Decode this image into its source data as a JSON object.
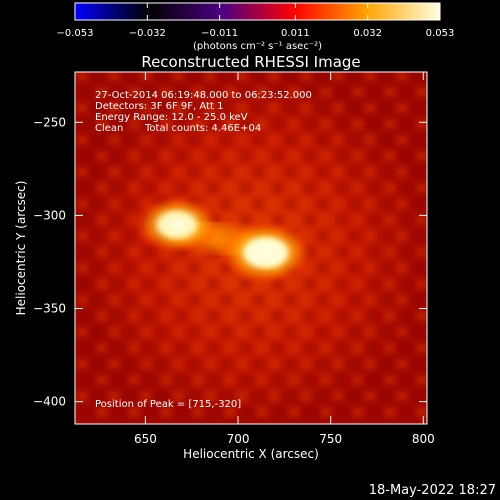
{
  "colorbar": {
    "ticks": [
      "-0.053",
      "-0.032",
      "-0.011",
      "0.011",
      "0.032",
      "0.053"
    ],
    "tick_values": [
      -0.053,
      -0.032,
      -0.011,
      0.011,
      0.032,
      0.053
    ],
    "range": [
      -0.053,
      0.053
    ],
    "units": "(photons cm⁻² s⁻¹ asec⁻²)",
    "colormap": [
      "#0000ff",
      "#000000",
      "#4b0082",
      "#ff0000",
      "#ffa500",
      "#ffffe0"
    ]
  },
  "chart_data": {
    "type": "heatmap",
    "title": "Reconstructed RHESSI Image",
    "xlabel": "Heliocentric X (arcsec)",
    "ylabel": "Heliocentric Y (arcsec)",
    "xlim": [
      612,
      802
    ],
    "ylim": [
      -412,
      -223
    ],
    "x_ticks": [
      650,
      700,
      750,
      800
    ],
    "x_tick_labels": [
      "650",
      "700",
      "750",
      "800"
    ],
    "y_ticks": [
      -250,
      -300,
      -350,
      -400
    ],
    "y_tick_labels": [
      "−250",
      "−300",
      "−350",
      "−400"
    ],
    "annotations": [
      "27-Oct-2014 06:19:48.000 to 06:23:52.000",
      "Detectors: 3F 6F 9F, Att 1",
      "Energy Range: 12.0 - 25.0 keV",
      "Clean",
      "Total counts: 4.46E+04"
    ],
    "peak_label": "Position of Peak = [715,-320]",
    "peak_position": [
      715,
      -320
    ],
    "sources": [
      {
        "x": 715,
        "y": -320,
        "level": 1.0
      },
      {
        "x": 667,
        "y": -305,
        "level": 0.82
      }
    ],
    "background_level": 0.45
  },
  "timestamp": "18-May-2022 18:27"
}
